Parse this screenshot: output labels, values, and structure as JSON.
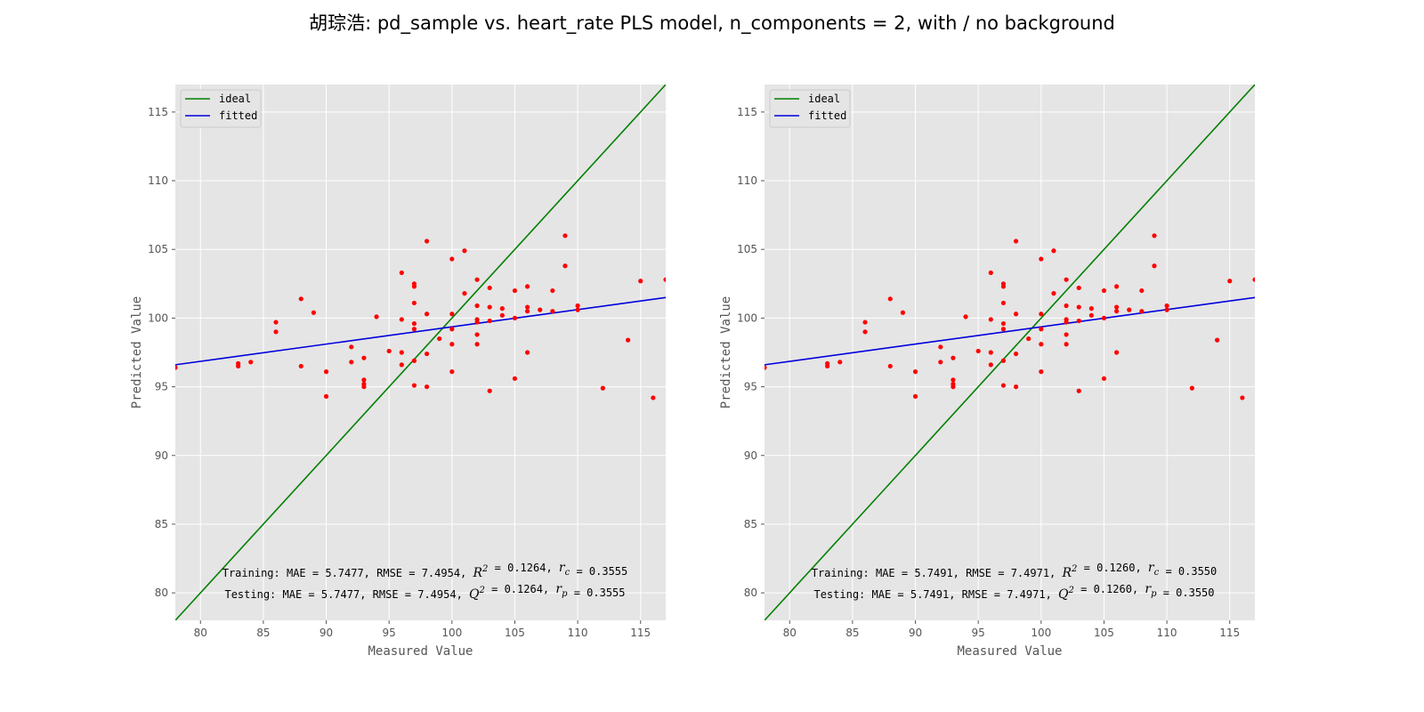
{
  "figure": {
    "title": "胡琮浩: pd_sample vs.  heart_rate PLS model, n_components = 2, with / no background"
  },
  "chart_data": [
    {
      "type": "scatter",
      "xlabel": "Measured Value",
      "ylabel": "Predicted Value",
      "xlim": [
        78,
        117
      ],
      "ylim": [
        78,
        117
      ],
      "xticks": [
        80,
        85,
        90,
        95,
        100,
        105,
        110,
        115
      ],
      "yticks": [
        80,
        85,
        90,
        95,
        100,
        105,
        110,
        115
      ],
      "grid": true,
      "legend": {
        "position": "top-left",
        "entries": [
          "ideal",
          "fitted"
        ]
      },
      "lines": {
        "ideal": {
          "color": "#008000",
          "points": [
            [
              78,
              78
            ],
            [
              117,
              117
            ]
          ]
        },
        "fitted": {
          "color": "#0000dd",
          "points": [
            [
              78,
              96.6
            ],
            [
              117,
              101.5
            ]
          ]
        }
      },
      "points_color": "#ff0000",
      "points": [
        [
          78,
          96.4
        ],
        [
          83,
          96.7
        ],
        [
          83,
          96.5
        ],
        [
          84,
          96.8
        ],
        [
          86,
          99.7
        ],
        [
          86,
          99.0
        ],
        [
          88,
          101.4
        ],
        [
          88,
          96.5
        ],
        [
          89,
          100.4
        ],
        [
          90,
          96.1
        ],
        [
          90,
          94.3
        ],
        [
          92,
          97.9
        ],
        [
          92,
          96.8
        ],
        [
          93,
          97.1
        ],
        [
          93,
          95.5
        ],
        [
          93,
          95.2
        ],
        [
          93,
          95.0
        ],
        [
          94,
          100.1
        ],
        [
          95,
          97.6
        ],
        [
          96,
          103.3
        ],
        [
          96,
          99.9
        ],
        [
          96,
          97.5
        ],
        [
          96,
          96.6
        ],
        [
          97,
          102.5
        ],
        [
          97,
          102.3
        ],
        [
          97,
          101.1
        ],
        [
          97,
          99.6
        ],
        [
          97,
          99.2
        ],
        [
          97,
          96.9
        ],
        [
          97,
          95.1
        ],
        [
          98,
          105.6
        ],
        [
          98,
          100.3
        ],
        [
          98,
          97.4
        ],
        [
          98,
          95.0
        ],
        [
          99,
          98.5
        ],
        [
          100,
          104.3
        ],
        [
          100,
          100.3
        ],
        [
          100,
          99.2
        ],
        [
          100,
          98.1
        ],
        [
          100,
          96.1
        ],
        [
          101,
          104.9
        ],
        [
          101,
          101.8
        ],
        [
          102,
          102.8
        ],
        [
          102,
          100.9
        ],
        [
          102,
          99.9
        ],
        [
          102,
          99.7
        ],
        [
          102,
          98.8
        ],
        [
          102,
          98.1
        ],
        [
          103,
          102.2
        ],
        [
          103,
          100.8
        ],
        [
          103,
          99.8
        ],
        [
          103,
          94.7
        ],
        [
          104,
          100.7
        ],
        [
          104,
          100.2
        ],
        [
          105,
          102.0
        ],
        [
          105,
          100.0
        ],
        [
          105,
          95.6
        ],
        [
          106,
          102.3
        ],
        [
          106,
          100.8
        ],
        [
          106,
          100.5
        ],
        [
          106,
          97.5
        ],
        [
          107,
          100.6
        ],
        [
          108,
          102.0
        ],
        [
          108,
          100.5
        ],
        [
          109,
          106.0
        ],
        [
          109,
          103.8
        ],
        [
          110,
          100.9
        ],
        [
          110,
          100.6
        ],
        [
          112,
          94.9
        ],
        [
          114,
          98.4
        ],
        [
          115,
          102.7
        ],
        [
          116,
          94.2
        ],
        [
          117,
          102.8
        ]
      ],
      "annotations": {
        "training": "Training: MAE = 5.7477, RMSE = 7.4954, $R^2$ = 0.1264, $r_c$ = 0.3555",
        "testing": "Testing: MAE = 5.7477, RMSE = 7.4954, $Q^2$ = 0.1264, $r_p$ = 0.3555"
      }
    },
    {
      "type": "scatter",
      "xlabel": "Measured Value",
      "ylabel": "Predicted Value",
      "xlim": [
        78,
        117
      ],
      "ylim": [
        78,
        117
      ],
      "xticks": [
        80,
        85,
        90,
        95,
        100,
        105,
        110,
        115
      ],
      "yticks": [
        80,
        85,
        90,
        95,
        100,
        105,
        110,
        115
      ],
      "grid": true,
      "legend": {
        "position": "top-left",
        "entries": [
          "ideal",
          "fitted"
        ]
      },
      "lines": {
        "ideal": {
          "color": "#008000",
          "points": [
            [
              78,
              78
            ],
            [
              117,
              117
            ]
          ]
        },
        "fitted": {
          "color": "#0000dd",
          "points": [
            [
              78,
              96.6
            ],
            [
              117,
              101.5
            ]
          ]
        }
      },
      "points_color": "#ff0000",
      "points": [
        [
          78,
          96.4
        ],
        [
          83,
          96.7
        ],
        [
          83,
          96.5
        ],
        [
          84,
          96.8
        ],
        [
          86,
          99.7
        ],
        [
          86,
          99.0
        ],
        [
          88,
          101.4
        ],
        [
          88,
          96.5
        ],
        [
          89,
          100.4
        ],
        [
          90,
          96.1
        ],
        [
          90,
          94.3
        ],
        [
          92,
          97.9
        ],
        [
          92,
          96.8
        ],
        [
          93,
          97.1
        ],
        [
          93,
          95.5
        ],
        [
          93,
          95.2
        ],
        [
          93,
          95.0
        ],
        [
          94,
          100.1
        ],
        [
          95,
          97.6
        ],
        [
          96,
          103.3
        ],
        [
          96,
          99.9
        ],
        [
          96,
          97.5
        ],
        [
          96,
          96.6
        ],
        [
          97,
          102.5
        ],
        [
          97,
          102.3
        ],
        [
          97,
          101.1
        ],
        [
          97,
          99.6
        ],
        [
          97,
          99.2
        ],
        [
          97,
          96.9
        ],
        [
          97,
          95.1
        ],
        [
          98,
          105.6
        ],
        [
          98,
          100.3
        ],
        [
          98,
          97.4
        ],
        [
          98,
          95.0
        ],
        [
          99,
          98.5
        ],
        [
          100,
          104.3
        ],
        [
          100,
          100.3
        ],
        [
          100,
          99.2
        ],
        [
          100,
          98.1
        ],
        [
          100,
          96.1
        ],
        [
          101,
          104.9
        ],
        [
          101,
          101.8
        ],
        [
          102,
          102.8
        ],
        [
          102,
          100.9
        ],
        [
          102,
          99.9
        ],
        [
          102,
          99.7
        ],
        [
          102,
          98.8
        ],
        [
          102,
          98.1
        ],
        [
          103,
          102.2
        ],
        [
          103,
          100.8
        ],
        [
          103,
          99.8
        ],
        [
          103,
          94.7
        ],
        [
          104,
          100.7
        ],
        [
          104,
          100.2
        ],
        [
          105,
          102.0
        ],
        [
          105,
          100.0
        ],
        [
          105,
          95.6
        ],
        [
          106,
          102.3
        ],
        [
          106,
          100.8
        ],
        [
          106,
          100.5
        ],
        [
          106,
          97.5
        ],
        [
          107,
          100.6
        ],
        [
          108,
          102.0
        ],
        [
          108,
          100.5
        ],
        [
          109,
          106.0
        ],
        [
          109,
          103.8
        ],
        [
          110,
          100.9
        ],
        [
          110,
          100.6
        ],
        [
          112,
          94.9
        ],
        [
          114,
          98.4
        ],
        [
          115,
          102.7
        ],
        [
          116,
          94.2
        ],
        [
          117,
          102.8
        ]
      ],
      "annotations": {
        "training": "Training: MAE = 5.7491, RMSE = 7.4971, $R^2$ = 0.1260, $r_c$ = 0.3550",
        "testing": "Testing: MAE = 5.7491, RMSE = 7.4971, $Q^2$ = 0.1260, $r_p$ = 0.3550"
      }
    }
  ]
}
